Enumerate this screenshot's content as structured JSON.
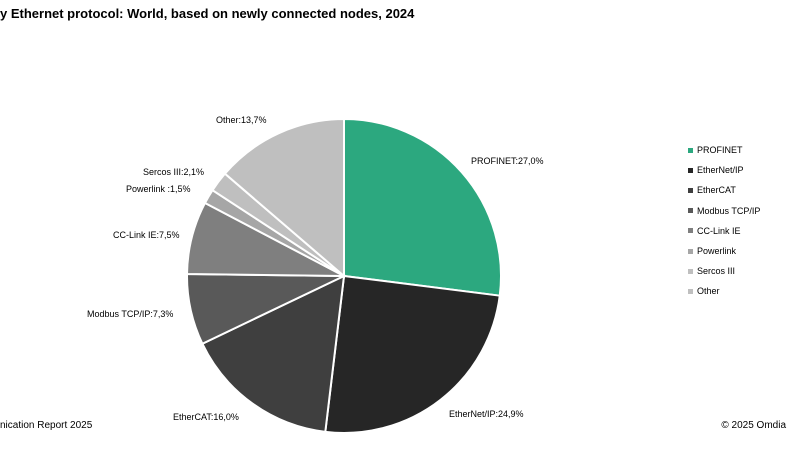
{
  "header": {
    "title": "y Ethernet protocol: World, based on newly connected nodes, 2024"
  },
  "footer": {
    "source": "nication Report 2025",
    "copyright": "© 2025 Omdia"
  },
  "chart_data": {
    "type": "pie",
    "title": "y Ethernet protocol: World, based on newly connected nodes, 2024",
    "categories": [
      "PROFINET",
      "EtherNet/IP",
      "EtherCAT",
      "Modbus TCP/IP",
      "CC-Link IE",
      "Powerlink",
      "Sercos III",
      "Other"
    ],
    "values": [
      27.0,
      24.9,
      16.0,
      7.3,
      7.5,
      1.5,
      2.1,
      13.7
    ],
    "unit": "%",
    "data_labels": [
      "PROFINET:27,0%",
      "EtherNet/IP:24,9%",
      "EtherCAT:16,0%",
      "Modbus TCP/IP:7,3%",
      "CC-Link IE:7,5%",
      "Powerlink :1,5%",
      "Sercos III:2,1%",
      "Other:13,7%"
    ],
    "colors": [
      "#2ca87f",
      "#262626",
      "#3f3f3f",
      "#595959",
      "#7f7f7f",
      "#a6a6a6",
      "#bfbfbf",
      "#bfbfbf"
    ],
    "legend": "right",
    "start_angle": "12 o'clock",
    "direction": "clockwise"
  }
}
